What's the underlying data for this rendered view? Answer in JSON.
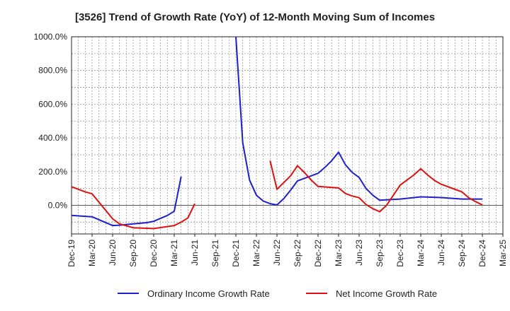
{
  "chart_data": {
    "type": "line",
    "title": "[3526]  Trend of Growth Rate (YoY) of 12-Month Moving Sum of Incomes",
    "xlabel": "",
    "ylabel": "",
    "x_ticks": [
      "Dec-19",
      "Mar-20",
      "Jun-20",
      "Sep-20",
      "Dec-20",
      "Mar-21",
      "Jun-21",
      "Sep-21",
      "Dec-21",
      "Mar-22",
      "Jun-22",
      "Sep-22",
      "Dec-22",
      "Mar-23",
      "Jun-23",
      "Sep-23",
      "Dec-23",
      "Mar-24",
      "Jun-24",
      "Sep-24",
      "Dec-24",
      "Mar-25"
    ],
    "y_ticks": [
      "0.0%",
      "200.0%",
      "400.0%",
      "600.0%",
      "800.0%",
      "1000.0%"
    ],
    "ylim": [
      -170,
      1000
    ],
    "grid": true,
    "legend_position": "bottom",
    "series": [
      {
        "name": "Ordinary Income Growth Rate",
        "color": "#1f1fcc",
        "points": [
          [
            "Dec-19",
            -60
          ],
          [
            "Mar-20",
            -68
          ],
          [
            "Jun-20",
            -120
          ],
          [
            "Jul-20",
            -118
          ],
          [
            "Sep-20",
            -110
          ],
          [
            "Nov-20",
            -103
          ],
          [
            "Dec-20",
            -95
          ],
          [
            "Feb-21",
            -60
          ],
          [
            "Mar-21",
            -35
          ],
          [
            "Apr-21",
            170
          ],
          null,
          [
            "Dec-21",
            1000
          ],
          [
            "Jan-22",
            370
          ],
          [
            "Feb-22",
            150
          ],
          [
            "Mar-22",
            60
          ],
          [
            "Apr-22",
            25
          ],
          [
            "May-22",
            10
          ],
          [
            "Jun-22",
            2
          ],
          [
            "Jul-22",
            40
          ],
          [
            "Aug-22",
            90
          ],
          [
            "Sep-22",
            145
          ],
          [
            "Dec-22",
            190
          ],
          [
            "Jan-23",
            225
          ],
          [
            "Feb-23",
            265
          ],
          [
            "Mar-23",
            315
          ],
          [
            "Apr-23",
            240
          ],
          [
            "May-23",
            195
          ],
          [
            "Jun-23",
            165
          ],
          [
            "Jul-23",
            100
          ],
          [
            "Aug-23",
            60
          ],
          [
            "Sep-23",
            30
          ],
          [
            "Dec-23",
            37
          ],
          [
            "Mar-24",
            50
          ],
          [
            "Jun-24",
            46
          ],
          [
            "Sep-24",
            37
          ],
          [
            "Dec-24",
            37
          ]
        ]
      },
      {
        "name": "Net Income Growth Rate",
        "color": "#e01010",
        "points": [
          [
            "Dec-19",
            110
          ],
          [
            "Feb-20",
            80
          ],
          [
            "Mar-20",
            68
          ],
          [
            "Jun-20",
            -80
          ],
          [
            "Jul-20",
            -110
          ],
          [
            "Sep-20",
            -133
          ],
          [
            "Dec-20",
            -138
          ],
          [
            "Mar-21",
            -120
          ],
          [
            "Apr-21",
            -100
          ],
          [
            "May-21",
            -75
          ],
          [
            "Jun-21",
            10
          ],
          null,
          [
            "May-22",
            265
          ],
          [
            "Jun-22",
            95
          ],
          [
            "Aug-22",
            175
          ],
          [
            "Sep-22",
            235
          ],
          [
            "Oct-22",
            195
          ],
          [
            "Nov-22",
            150
          ],
          [
            "Dec-22",
            112
          ],
          [
            "Mar-23",
            103
          ],
          [
            "Apr-23",
            70
          ],
          [
            "May-23",
            55
          ],
          [
            "Jun-23",
            45
          ],
          [
            "Jul-23",
            5
          ],
          [
            "Aug-23",
            -20
          ],
          [
            "Sep-23",
            -38
          ],
          [
            "Oct-23",
            0
          ],
          [
            "Dec-23",
            120
          ],
          [
            "Feb-24",
            180
          ],
          [
            "Mar-24",
            217
          ],
          [
            "Apr-24",
            180
          ],
          [
            "May-24",
            148
          ],
          [
            "Jun-24",
            125
          ],
          [
            "Sep-24",
            80
          ],
          [
            "Oct-24",
            45
          ],
          [
            "Nov-24",
            22
          ],
          [
            "Dec-24",
            2
          ]
        ]
      }
    ]
  }
}
